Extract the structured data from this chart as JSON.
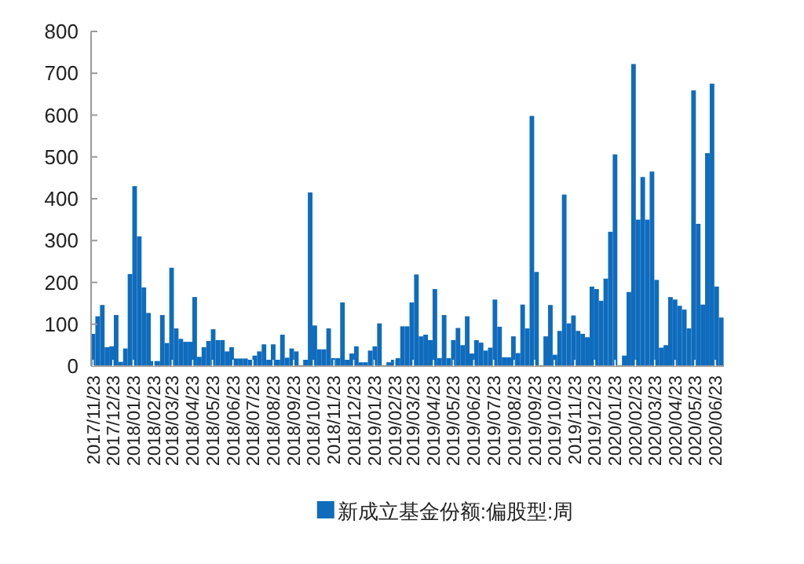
{
  "chart_data": {
    "type": "bar",
    "legend": "bottom",
    "grid": false,
    "xlim": [
      "2017-11-20",
      "2020-07-06"
    ],
    "xticks": [
      {
        "value": "2017-11-23",
        "label": "2017/11/23"
      },
      {
        "value": "2017-12-23",
        "label": "2017/12/23"
      },
      {
        "value": "2018-01-23",
        "label": "2018/01/23"
      },
      {
        "value": "2018-02-23",
        "label": "2018/02/23"
      },
      {
        "value": "2018-03-23",
        "label": "2018/03/23"
      },
      {
        "value": "2018-04-23",
        "label": "2018/04/23"
      },
      {
        "value": "2018-05-23",
        "label": "2018/05/23"
      },
      {
        "value": "2018-06-23",
        "label": "2018/06/23"
      },
      {
        "value": "2018-07-23",
        "label": "2018/07/23"
      },
      {
        "value": "2018-08-23",
        "label": "2018/08/23"
      },
      {
        "value": "2018-09-23",
        "label": "2018/09/23"
      },
      {
        "value": "2018-10-23",
        "label": "2018/10/23"
      },
      {
        "value": "2018-11-23",
        "label": "2018/11/23"
      },
      {
        "value": "2018-12-23",
        "label": "2018/12/23"
      },
      {
        "value": "2019-01-23",
        "label": "2019/01/23"
      },
      {
        "value": "2019-02-23",
        "label": "2019/02/23"
      },
      {
        "value": "2019-03-23",
        "label": "2019/03/23"
      },
      {
        "value": "2019-04-23",
        "label": "2019/04/23"
      },
      {
        "value": "2019-05-23",
        "label": "2019/05/23"
      },
      {
        "value": "2019-06-23",
        "label": "2019/06/23"
      },
      {
        "value": "2019-07-23",
        "label": "2019/07/23"
      },
      {
        "value": "2019-08-23",
        "label": "2019/08/23"
      },
      {
        "value": "2019-09-23",
        "label": "2019/09/23"
      },
      {
        "value": "2019-10-23",
        "label": "2019/10/23"
      },
      {
        "value": "2019-11-23",
        "label": "2019/11/23"
      },
      {
        "value": "2019-12-23",
        "label": "2019/12/23"
      },
      {
        "value": "2020-01-23",
        "label": "2020/01/23"
      },
      {
        "value": "2020-02-23",
        "label": "2020/02/23"
      },
      {
        "value": "2020-03-23",
        "label": "2020/03/23"
      },
      {
        "value": "2020-04-23",
        "label": "2020/04/23"
      },
      {
        "value": "2020-05-23",
        "label": "2020/05/23"
      },
      {
        "value": "2020-06-23",
        "label": "2020/06/23"
      }
    ],
    "ylim": [
      0,
      800
    ],
    "yticks": [
      0,
      100,
      200,
      300,
      400,
      500,
      600,
      700,
      800
    ],
    "x": [
      "2017-11-23",
      "2017-11-30",
      "2017-12-07",
      "2017-12-14",
      "2017-12-21",
      "2017-12-28",
      "2018-01-04",
      "2018-01-11",
      "2018-01-18",
      "2018-01-25",
      "2018-02-01",
      "2018-02-08",
      "2018-02-15",
      "2018-02-22",
      "2018-03-01",
      "2018-03-08",
      "2018-03-15",
      "2018-03-22",
      "2018-03-29",
      "2018-04-05",
      "2018-04-12",
      "2018-04-19",
      "2018-04-26",
      "2018-05-03",
      "2018-05-10",
      "2018-05-17",
      "2018-05-24",
      "2018-05-31",
      "2018-06-07",
      "2018-06-14",
      "2018-06-21",
      "2018-06-28",
      "2018-07-05",
      "2018-07-12",
      "2018-07-19",
      "2018-07-26",
      "2018-08-02",
      "2018-08-09",
      "2018-08-16",
      "2018-08-23",
      "2018-08-30",
      "2018-09-06",
      "2018-09-13",
      "2018-09-20",
      "2018-09-27",
      "2018-10-04",
      "2018-10-11",
      "2018-10-18",
      "2018-10-25",
      "2018-11-01",
      "2018-11-08",
      "2018-11-15",
      "2018-11-22",
      "2018-11-29",
      "2018-12-06",
      "2018-12-13",
      "2018-12-20",
      "2018-12-27",
      "2019-01-03",
      "2019-01-10",
      "2019-01-17",
      "2019-01-24",
      "2019-01-31",
      "2019-02-07",
      "2019-02-14",
      "2019-02-21",
      "2019-02-28",
      "2019-03-07",
      "2019-03-14",
      "2019-03-21",
      "2019-03-28",
      "2019-04-04",
      "2019-04-11",
      "2019-04-18",
      "2019-04-25",
      "2019-05-02",
      "2019-05-09",
      "2019-05-16",
      "2019-05-23",
      "2019-05-30",
      "2019-06-06",
      "2019-06-13",
      "2019-06-20",
      "2019-06-27",
      "2019-07-04",
      "2019-07-11",
      "2019-07-18",
      "2019-07-25",
      "2019-08-01",
      "2019-08-08",
      "2019-08-15",
      "2019-08-22",
      "2019-08-29",
      "2019-09-05",
      "2019-09-12",
      "2019-09-19",
      "2019-09-26",
      "2019-10-03",
      "2019-10-10",
      "2019-10-17",
      "2019-10-24",
      "2019-10-31",
      "2019-11-07",
      "2019-11-14",
      "2019-11-21",
      "2019-11-28",
      "2019-12-05",
      "2019-12-12",
      "2019-12-19",
      "2019-12-26",
      "2020-01-02",
      "2020-01-09",
      "2020-01-16",
      "2020-01-23",
      "2020-01-30",
      "2020-02-06",
      "2020-02-13",
      "2020-02-20",
      "2020-02-27",
      "2020-03-05",
      "2020-03-12",
      "2020-03-19",
      "2020-03-26",
      "2020-04-02",
      "2020-04-09",
      "2020-04-16",
      "2020-04-23",
      "2020-04-30",
      "2020-05-07",
      "2020-05-14",
      "2020-05-21",
      "2020-05-28",
      "2020-06-04",
      "2020-06-11",
      "2020-06-18",
      "2020-06-25",
      "2020-07-02"
    ],
    "series": [
      {
        "name": "新成立基金份额:偏股型:周",
        "color": "#0f6cbd",
        "values": [
          77,
          119,
          146,
          45,
          47,
          122,
          10,
          42,
          220,
          430,
          310,
          188,
          127,
          12,
          12,
          122,
          55,
          235,
          90,
          65,
          58,
          58,
          165,
          22,
          45,
          60,
          88,
          62,
          62,
          35,
          45,
          18,
          18,
          18,
          15,
          25,
          35,
          52,
          15,
          52,
          15,
          75,
          20,
          42,
          35,
          0,
          15,
          415,
          97,
          40,
          40,
          90,
          19,
          19,
          152,
          15,
          30,
          47,
          9,
          9,
          37,
          47,
          102,
          0,
          9,
          15,
          19,
          95,
          95,
          152,
          219,
          71,
          75,
          62,
          184,
          19,
          122,
          19,
          62,
          91,
          50,
          119,
          30,
          62,
          56,
          37,
          44,
          159,
          94,
          21,
          21,
          71,
          31,
          147,
          90,
          598,
          225,
          0,
          71,
          146,
          27,
          84,
          410,
          102,
          121,
          84,
          77,
          69,
          190,
          184,
          156,
          209,
          321,
          506,
          0,
          25,
          177,
          722,
          350,
          452,
          350,
          465,
          206,
          44,
          50,
          165,
          159,
          144,
          135,
          90,
          659,
          340,
          147,
          509,
          675,
          190,
          116
        ]
      }
    ]
  }
}
